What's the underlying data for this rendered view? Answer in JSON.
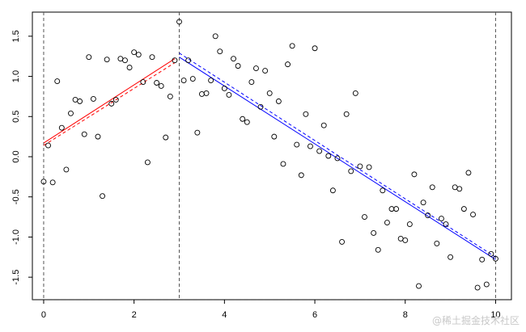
{
  "chart_data": {
    "type": "scatter",
    "title": "",
    "xlabel": "",
    "ylabel": "",
    "xlim": [
      -0.25,
      10.35
    ],
    "ylim": [
      -1.78,
      1.8
    ],
    "x_ticks": [
      0,
      2,
      4,
      6,
      8,
      10
    ],
    "y_ticks": [
      -1.5,
      -1.0,
      -0.5,
      0.0,
      0.5,
      1.0,
      1.5
    ],
    "grid": false,
    "vertical_dashed_lines": [
      0,
      3,
      10
    ],
    "horizontal_dashed_lines": [
      -1.78
    ],
    "points": {
      "x": [
        0.0,
        0.1,
        0.2,
        0.3,
        0.4,
        0.5,
        0.6,
        0.7,
        0.8,
        0.9,
        1.0,
        1.1,
        1.2,
        1.3,
        1.4,
        1.5,
        1.6,
        1.7,
        1.8,
        1.9,
        2.0,
        2.1,
        2.2,
        2.3,
        2.4,
        2.5,
        2.6,
        2.7,
        2.8,
        2.9,
        3.0,
        3.1,
        3.2,
        3.3,
        3.4,
        3.5,
        3.6,
        3.7,
        3.8,
        3.9,
        4.0,
        4.1,
        4.2,
        4.3,
        4.4,
        4.5,
        4.6,
        4.7,
        4.8,
        4.9,
        5.0,
        5.1,
        5.2,
        5.3,
        5.4,
        5.5,
        5.6,
        5.7,
        5.8,
        5.9,
        6.0,
        6.1,
        6.2,
        6.3,
        6.4,
        6.5,
        6.6,
        6.7,
        6.8,
        6.9,
        7.0,
        7.1,
        7.2,
        7.3,
        7.4,
        7.5,
        7.6,
        7.7,
        7.8,
        7.9,
        8.0,
        8.1,
        8.2,
        8.3,
        8.4,
        8.5,
        8.6,
        8.7,
        8.8,
        8.9,
        9.0,
        9.1,
        9.2,
        9.3,
        9.4,
        9.5,
        9.6,
        9.7,
        9.8,
        9.9,
        10.0
      ],
      "y": [
        -0.31,
        0.14,
        -0.32,
        0.94,
        0.36,
        -0.16,
        0.54,
        0.71,
        0.69,
        0.28,
        1.24,
        0.72,
        0.25,
        -0.49,
        1.21,
        0.66,
        0.71,
        1.22,
        1.2,
        1.11,
        1.3,
        1.27,
        0.93,
        -0.07,
        1.24,
        0.92,
        0.88,
        0.24,
        0.75,
        1.2,
        1.68,
        0.95,
        1.2,
        0.97,
        0.3,
        0.78,
        0.79,
        0.95,
        1.5,
        1.31,
        0.85,
        0.77,
        1.22,
        1.13,
        0.47,
        0.43,
        0.93,
        1.1,
        0.62,
        1.07,
        0.79,
        0.25,
        0.69,
        -0.09,
        1.15,
        1.38,
        0.15,
        -0.23,
        0.53,
        0.13,
        1.35,
        0.07,
        0.39,
        0.01,
        -0.42,
        -0.02,
        -1.06,
        0.53,
        -0.18,
        0.79,
        -0.12,
        -0.75,
        -0.13,
        -0.95,
        -1.16,
        -0.42,
        -0.82,
        -0.65,
        -0.65,
        -1.02,
        -1.04,
        -0.84,
        -0.22,
        -1.61,
        -0.57,
        -0.73,
        -0.38,
        -1.08,
        -0.77,
        -0.84,
        -1.25,
        -0.38,
        -0.4,
        -0.65,
        -0.2,
        -0.72,
        -1.63,
        -1.28,
        -1.59,
        -1.21,
        -1.27
      ]
    },
    "fitted_lines": [
      {
        "color": "#ff0000",
        "style": "solid",
        "x": [
          0.0,
          2.9
        ],
        "y": [
          0.17,
          1.22
        ]
      },
      {
        "color": "#ff0000",
        "style": "dashed",
        "x": [
          0.0,
          2.9
        ],
        "y": [
          0.14,
          1.17
        ]
      },
      {
        "color": "#0000ff",
        "style": "solid",
        "x": [
          3.0,
          10.0
        ],
        "y": [
          1.24,
          -1.28
        ]
      },
      {
        "color": "#0000ff",
        "style": "dashed",
        "x": [
          3.0,
          10.0
        ],
        "y": [
          1.29,
          -1.25
        ]
      }
    ]
  },
  "colors": {
    "points": "#000000",
    "frame": "#000000",
    "guide": "#555555"
  },
  "watermark": {
    "text": "@稀土掘金技术社区"
  }
}
